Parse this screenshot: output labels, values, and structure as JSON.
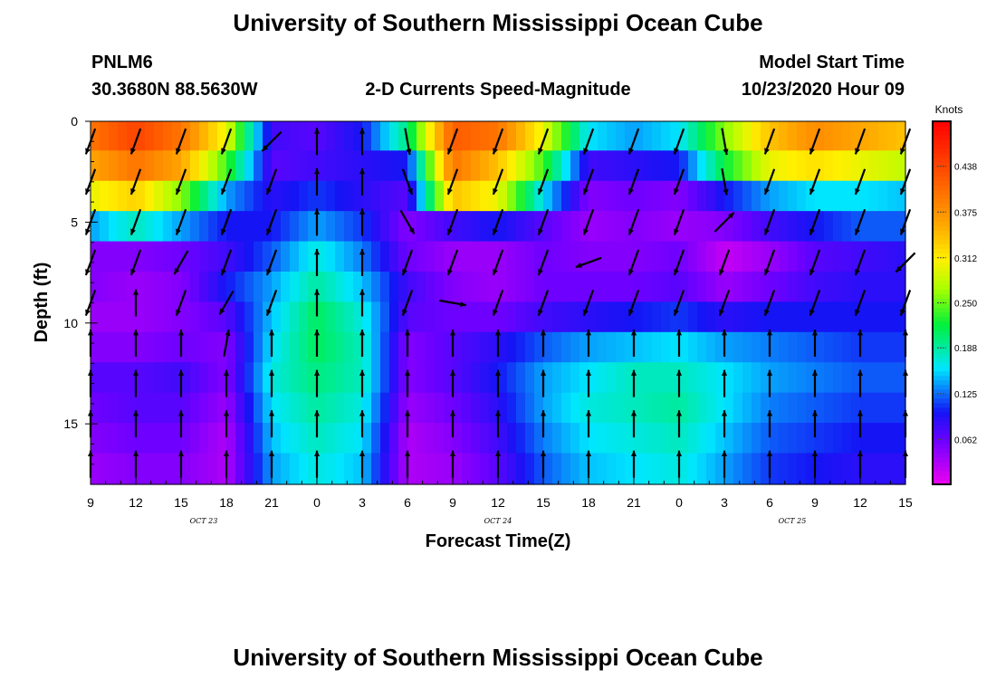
{
  "header": {
    "title": "University of Southern Mississippi Ocean Cube",
    "station": "PNLM6",
    "coords": "30.3680N 88.5630W",
    "subtitle": "2-D Currents Speed-Magnitude",
    "model_label": "Model Start Time",
    "model_time": "10/23/2020 Hour 09"
  },
  "footer": {
    "title": "University of Southern Mississippi Ocean Cube"
  },
  "chart_data": {
    "type": "heatmap",
    "title": "2-D Currents Speed-Magnitude",
    "xlabel": "Forecast Time(Z)",
    "ylabel": "Depth (ft)",
    "x_range_hours": [
      0,
      54
    ],
    "ylim": [
      0,
      18
    ],
    "x_tick_labels": [
      "9",
      "12",
      "15",
      "18",
      "21",
      "0",
      "3",
      "6",
      "9",
      "12",
      "15",
      "18",
      "21",
      "0",
      "3",
      "6",
      "9",
      "12",
      "15"
    ],
    "y_ticks": [
      0,
      5,
      10,
      15
    ],
    "y_tick_labels": [
      "0",
      "5",
      "10",
      "15"
    ],
    "day_labels": [
      {
        "text": "OCT 23",
        "hour": 7.5
      },
      {
        "text": "OCT 24",
        "hour": 27
      },
      {
        "text": "OCT 25",
        "hour": 46.5
      }
    ],
    "colorbar": {
      "unit": "Knots",
      "range": [
        0,
        0.5
      ],
      "ticks": [
        0.062,
        0.125,
        0.188,
        0.25,
        0.312,
        0.375,
        0.438
      ],
      "tick_labels": [
        "0.062",
        "0.125",
        "0.188",
        "0.250",
        "0.312",
        "0.375",
        "0.438"
      ]
    },
    "depth_levels": [
      0.7,
      2.2,
      3.7,
      5.2,
      6.7,
      8.2,
      9.7,
      11.2,
      12.7,
      14.2,
      15.7,
      17.2
    ],
    "speed_profiles": [
      {
        "hour": 0,
        "v": [
          0.4,
          0.36,
          0.3,
          0.14,
          0.05,
          0.05,
          0.04,
          0.05,
          0.07,
          0.06,
          0.05,
          0.04
        ]
      },
      {
        "hour": 3,
        "v": [
          0.44,
          0.4,
          0.33,
          0.18,
          0.05,
          0.04,
          0.04,
          0.05,
          0.07,
          0.07,
          0.06,
          0.05
        ]
      },
      {
        "hour": 6,
        "v": [
          0.4,
          0.36,
          0.26,
          0.14,
          0.06,
          0.05,
          0.05,
          0.06,
          0.08,
          0.07,
          0.06,
          0.05
        ]
      },
      {
        "hour": 9,
        "v": [
          0.3,
          0.24,
          0.14,
          0.1,
          0.08,
          0.1,
          0.07,
          0.05,
          0.05,
          0.04,
          0.03,
          0.03
        ]
      },
      {
        "hour": 12,
        "v": [
          0.08,
          0.07,
          0.09,
          0.1,
          0.12,
          0.14,
          0.15,
          0.16,
          0.17,
          0.16,
          0.15,
          0.14
        ]
      },
      {
        "hour": 15,
        "v": [
          0.07,
          0.08,
          0.11,
          0.14,
          0.17,
          0.19,
          0.21,
          0.21,
          0.2,
          0.19,
          0.18,
          0.17
        ]
      },
      {
        "hour": 18,
        "v": [
          0.1,
          0.09,
          0.09,
          0.11,
          0.13,
          0.15,
          0.17,
          0.18,
          0.18,
          0.17,
          0.16,
          0.15
        ]
      },
      {
        "hour": 21,
        "v": [
          0.2,
          0.1,
          0.07,
          0.05,
          0.06,
          0.08,
          0.07,
          0.05,
          0.05,
          0.04,
          0.03,
          0.03
        ]
      },
      {
        "hour": 24,
        "v": [
          0.42,
          0.4,
          0.34,
          0.08,
          0.04,
          0.05,
          0.06,
          0.07,
          0.07,
          0.06,
          0.05,
          0.04
        ]
      },
      {
        "hour": 27,
        "v": [
          0.4,
          0.34,
          0.3,
          0.1,
          0.04,
          0.04,
          0.06,
          0.09,
          0.1,
          0.09,
          0.08,
          0.07
        ]
      },
      {
        "hour": 30,
        "v": [
          0.3,
          0.24,
          0.16,
          0.07,
          0.06,
          0.06,
          0.08,
          0.12,
          0.14,
          0.14,
          0.13,
          0.12
        ]
      },
      {
        "hour": 33,
        "v": [
          0.16,
          0.08,
          0.05,
          0.04,
          0.05,
          0.06,
          0.09,
          0.14,
          0.16,
          0.17,
          0.16,
          0.15
        ]
      },
      {
        "hour": 36,
        "v": [
          0.14,
          0.09,
          0.06,
          0.05,
          0.05,
          0.06,
          0.1,
          0.15,
          0.18,
          0.18,
          0.17,
          0.16
        ]
      },
      {
        "hour": 39,
        "v": [
          0.16,
          0.1,
          0.05,
          0.04,
          0.06,
          0.07,
          0.11,
          0.16,
          0.18,
          0.19,
          0.18,
          0.17
        ]
      },
      {
        "hour": 42,
        "v": [
          0.26,
          0.22,
          0.1,
          0.05,
          0.02,
          0.04,
          0.09,
          0.14,
          0.16,
          0.16,
          0.15,
          0.14
        ]
      },
      {
        "hour": 45,
        "v": [
          0.34,
          0.3,
          0.14,
          0.08,
          0.04,
          0.06,
          0.1,
          0.13,
          0.14,
          0.13,
          0.12,
          0.11
        ]
      },
      {
        "hour": 48,
        "v": [
          0.38,
          0.32,
          0.16,
          0.1,
          0.07,
          0.08,
          0.1,
          0.12,
          0.13,
          0.12,
          0.11,
          0.1
        ]
      },
      {
        "hour": 51,
        "v": [
          0.36,
          0.3,
          0.16,
          0.12,
          0.08,
          0.09,
          0.1,
          0.11,
          0.12,
          0.11,
          0.1,
          0.09
        ]
      },
      {
        "hour": 54,
        "v": [
          0.34,
          0.28,
          0.15,
          0.12,
          0.09,
          0.09,
          0.1,
          0.11,
          0.12,
          0.11,
          0.1,
          0.09
        ]
      }
    ],
    "vector_depths": [
      1,
      3,
      5,
      7,
      9,
      11,
      13,
      15,
      17
    ],
    "vector_columns": [
      {
        "hour": 0,
        "dir": [
          200,
          200,
          200,
          200,
          200,
          0,
          0,
          0,
          0
        ],
        "len": [
          1,
          1,
          1,
          1,
          1,
          1,
          1,
          1,
          1
        ]
      },
      {
        "hour": 3,
        "dir": [
          200,
          200,
          200,
          200,
          0,
          0,
          0,
          0,
          0
        ],
        "len": [
          1,
          1,
          1,
          1,
          1,
          1,
          1,
          1,
          1
        ]
      },
      {
        "hour": 6,
        "dir": [
          200,
          200,
          200,
          210,
          200,
          0,
          0,
          0,
          0
        ],
        "len": [
          1,
          1,
          1,
          1,
          1,
          1,
          1,
          1,
          1
        ]
      },
      {
        "hour": 9,
        "dir": [
          200,
          200,
          200,
          200,
          210,
          10,
          0,
          0,
          0
        ],
        "len": [
          1,
          1,
          1,
          1,
          1,
          1,
          1,
          1,
          1
        ]
      },
      {
        "hour": 12,
        "dir": [
          225,
          200,
          200,
          200,
          200,
          0,
          0,
          0,
          0
        ],
        "len": [
          1,
          1,
          1,
          1,
          1,
          1,
          1,
          1,
          1
        ]
      },
      {
        "hour": 15,
        "dir": [
          0,
          0,
          0,
          0,
          0,
          0,
          0,
          0,
          0
        ],
        "len": [
          1,
          1,
          1,
          1,
          1,
          1,
          1,
          1,
          1
        ]
      },
      {
        "hour": 18,
        "dir": [
          0,
          0,
          0,
          0,
          0,
          0,
          0,
          0,
          0
        ],
        "len": [
          1,
          1,
          1,
          1,
          1,
          1,
          1,
          1,
          1
        ]
      },
      {
        "hour": 21,
        "dir": [
          170,
          160,
          150,
          200,
          200,
          0,
          0,
          0,
          0
        ],
        "len": [
          1,
          1,
          1,
          1,
          1,
          1,
          1,
          1,
          1
        ]
      },
      {
        "hour": 24,
        "dir": [
          200,
          200,
          200,
          200,
          100,
          0,
          0,
          0,
          0
        ],
        "len": [
          1,
          1,
          1,
          1,
          1,
          1,
          1,
          1,
          1
        ]
      },
      {
        "hour": 27,
        "dir": [
          200,
          200,
          200,
          200,
          200,
          0,
          0,
          0,
          0
        ],
        "len": [
          1,
          1,
          1,
          1,
          1,
          1,
          1,
          1,
          1
        ]
      },
      {
        "hour": 30,
        "dir": [
          200,
          200,
          200,
          200,
          200,
          0,
          0,
          0,
          0
        ],
        "len": [
          1,
          1,
          1,
          1,
          1,
          1,
          1,
          1,
          1
        ]
      },
      {
        "hour": 33,
        "dir": [
          200,
          200,
          200,
          250,
          200,
          0,
          0,
          0,
          0
        ],
        "len": [
          1,
          1,
          1,
          1,
          1,
          1,
          1,
          1,
          1
        ]
      },
      {
        "hour": 36,
        "dir": [
          200,
          200,
          200,
          200,
          200,
          0,
          0,
          0,
          0
        ],
        "len": [
          1,
          1,
          1,
          1,
          1,
          1,
          1,
          1,
          1
        ]
      },
      {
        "hour": 39,
        "dir": [
          200,
          200,
          200,
          200,
          200,
          0,
          0,
          0,
          0
        ],
        "len": [
          1,
          1,
          1,
          1,
          1,
          1,
          1,
          1,
          1
        ]
      },
      {
        "hour": 42,
        "dir": [
          170,
          170,
          45,
          200,
          200,
          0,
          0,
          0,
          0
        ],
        "len": [
          1,
          1,
          1,
          1,
          1,
          1,
          1,
          1,
          1
        ]
      },
      {
        "hour": 45,
        "dir": [
          200,
          200,
          200,
          200,
          200,
          0,
          0,
          0,
          0
        ],
        "len": [
          1,
          1,
          1,
          1,
          1,
          1,
          1,
          1,
          1
        ]
      },
      {
        "hour": 48,
        "dir": [
          200,
          200,
          200,
          200,
          200,
          0,
          0,
          0,
          0
        ],
        "len": [
          1,
          1,
          1,
          1,
          1,
          1,
          1,
          1,
          1
        ]
      },
      {
        "hour": 51,
        "dir": [
          200,
          200,
          200,
          200,
          200,
          0,
          0,
          0,
          0
        ],
        "len": [
          1,
          1,
          1,
          1,
          1,
          1,
          1,
          1,
          1
        ]
      },
      {
        "hour": 54,
        "dir": [
          200,
          200,
          200,
          225,
          200,
          0,
          0,
          0,
          0
        ],
        "len": [
          1,
          1,
          1,
          1,
          1,
          1,
          1,
          1,
          1
        ]
      }
    ]
  }
}
